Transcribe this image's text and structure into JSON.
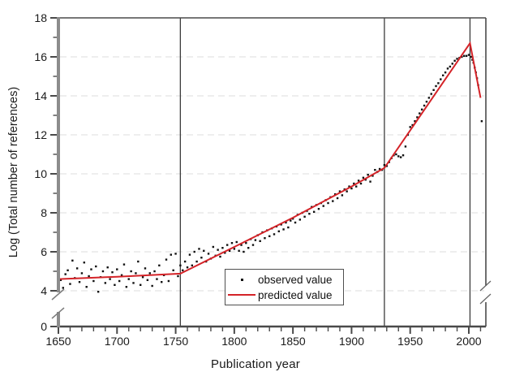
{
  "figure": {
    "xlabel": "Publication year",
    "ylabel": "Log (Total number of references)"
  },
  "chart_data": {
    "type": "scatter",
    "title": "",
    "xlabel": "Publication year",
    "ylabel": "Log (Total number of references)",
    "xlim": [
      1650,
      2014
    ],
    "ylim": [
      0,
      18
    ],
    "axis_break": {
      "axis": "y",
      "between": [
        0,
        4
      ]
    },
    "x_major_ticks": [
      1650,
      1700,
      1750,
      1800,
      1850,
      1900,
      1950,
      2000
    ],
    "x_minor_tick_step": 10,
    "y_major_ticks": [
      0,
      4,
      6,
      8,
      10,
      12,
      14,
      16,
      18
    ],
    "y_minor_ticks": [
      5,
      7,
      9,
      11,
      13,
      15,
      17
    ],
    "y_gridlines": [
      4,
      6,
      8,
      10,
      12,
      14,
      16
    ],
    "grid": "dashed-horizontal",
    "reference_lines_x": [
      1754,
      1928,
      2001
    ],
    "legend_position": "inside-bottom-center",
    "colors": {
      "observed": "#111111",
      "predicted": "#d42328",
      "frame": "#4a4a4a",
      "left_axis": "#8c8c8c",
      "grid": "#e8e8e8",
      "reference_line": "#3c3c3c"
    },
    "series": [
      {
        "name": "observed value",
        "type": "scatter",
        "marker": "square",
        "color": "#111111",
        "points": [
          [
            1650,
            5.35
          ],
          [
            1652,
            4.55
          ],
          [
            1654,
            4.15
          ],
          [
            1656,
            4.85
          ],
          [
            1658,
            5.05
          ],
          [
            1660,
            4.35
          ],
          [
            1662,
            5.55
          ],
          [
            1664,
            4.65
          ],
          [
            1666,
            5.15
          ],
          [
            1668,
            4.45
          ],
          [
            1670,
            4.9
          ],
          [
            1672,
            5.45
          ],
          [
            1674,
            4.2
          ],
          [
            1676,
            4.75
          ],
          [
            1678,
            5.1
          ],
          [
            1680,
            4.5
          ],
          [
            1682,
            5.25
          ],
          [
            1684,
            3.95
          ],
          [
            1686,
            4.7
          ],
          [
            1688,
            5.0
          ],
          [
            1690,
            4.4
          ],
          [
            1692,
            5.2
          ],
          [
            1694,
            4.6
          ],
          [
            1696,
            4.95
          ],
          [
            1698,
            4.3
          ],
          [
            1700,
            5.1
          ],
          [
            1702,
            4.5
          ],
          [
            1704,
            4.8
          ],
          [
            1706,
            5.35
          ],
          [
            1708,
            4.2
          ],
          [
            1710,
            4.6
          ],
          [
            1712,
            5.0
          ],
          [
            1714,
            4.4
          ],
          [
            1716,
            4.9
          ],
          [
            1718,
            5.5
          ],
          [
            1720,
            4.3
          ],
          [
            1722,
            4.7
          ],
          [
            1724,
            5.15
          ],
          [
            1726,
            4.55
          ],
          [
            1728,
            4.9
          ],
          [
            1730,
            4.25
          ],
          [
            1732,
            5.0
          ],
          [
            1734,
            4.6
          ],
          [
            1736,
            5.3
          ],
          [
            1738,
            4.45
          ],
          [
            1740,
            4.8
          ],
          [
            1742,
            5.6
          ],
          [
            1744,
            4.5
          ],
          [
            1746,
            5.85
          ],
          [
            1748,
            5.05
          ],
          [
            1750,
            5.9
          ],
          [
            1752,
            4.75
          ],
          [
            1754,
            5.3
          ],
          [
            1756,
            5.05
          ],
          [
            1758,
            5.5
          ],
          [
            1760,
            5.2
          ],
          [
            1762,
            5.85
          ],
          [
            1764,
            5.3
          ],
          [
            1766,
            6.0
          ],
          [
            1768,
            5.5
          ],
          [
            1770,
            6.15
          ],
          [
            1772,
            5.7
          ],
          [
            1774,
            6.05
          ],
          [
            1776,
            5.5
          ],
          [
            1778,
            5.9
          ],
          [
            1780,
            5.65
          ],
          [
            1782,
            6.25
          ],
          [
            1784,
            5.8
          ],
          [
            1786,
            6.1
          ],
          [
            1788,
            5.75
          ],
          [
            1790,
            6.2
          ],
          [
            1792,
            5.95
          ],
          [
            1794,
            6.35
          ],
          [
            1796,
            6.05
          ],
          [
            1798,
            6.45
          ],
          [
            1800,
            6.15
          ],
          [
            1802,
            6.5
          ],
          [
            1804,
            6.05
          ],
          [
            1806,
            6.35
          ],
          [
            1808,
            6.0
          ],
          [
            1810,
            6.45
          ],
          [
            1812,
            6.2
          ],
          [
            1814,
            6.65
          ],
          [
            1816,
            6.35
          ],
          [
            1818,
            6.6
          ],
          [
            1820,
            6.85
          ],
          [
            1822,
            6.55
          ],
          [
            1824,
            7.0
          ],
          [
            1826,
            6.7
          ],
          [
            1828,
            7.1
          ],
          [
            1830,
            6.8
          ],
          [
            1832,
            7.2
          ],
          [
            1834,
            6.9
          ],
          [
            1836,
            7.3
          ],
          [
            1838,
            7.05
          ],
          [
            1840,
            7.4
          ],
          [
            1842,
            7.15
          ],
          [
            1844,
            7.5
          ],
          [
            1846,
            7.25
          ],
          [
            1848,
            7.6
          ],
          [
            1850,
            7.7
          ],
          [
            1852,
            7.5
          ],
          [
            1854,
            7.9
          ],
          [
            1856,
            7.65
          ],
          [
            1858,
            8.0
          ],
          [
            1860,
            7.8
          ],
          [
            1862,
            8.1
          ],
          [
            1864,
            7.95
          ],
          [
            1866,
            8.3
          ],
          [
            1868,
            8.05
          ],
          [
            1870,
            8.4
          ],
          [
            1872,
            8.2
          ],
          [
            1874,
            8.5
          ],
          [
            1876,
            8.35
          ],
          [
            1878,
            8.65
          ],
          [
            1880,
            8.5
          ],
          [
            1882,
            8.8
          ],
          [
            1884,
            8.6
          ],
          [
            1886,
            8.95
          ],
          [
            1888,
            8.75
          ],
          [
            1890,
            9.1
          ],
          [
            1892,
            8.9
          ],
          [
            1894,
            9.2
          ],
          [
            1896,
            9.1
          ],
          [
            1898,
            9.35
          ],
          [
            1900,
            9.25
          ],
          [
            1902,
            9.5
          ],
          [
            1904,
            9.35
          ],
          [
            1906,
            9.65
          ],
          [
            1908,
            9.5
          ],
          [
            1910,
            9.8
          ],
          [
            1912,
            9.7
          ],
          [
            1914,
            9.95
          ],
          [
            1916,
            9.6
          ],
          [
            1918,
            9.9
          ],
          [
            1920,
            10.2
          ],
          [
            1922,
            10.1
          ],
          [
            1924,
            10.25
          ],
          [
            1926,
            10.2
          ],
          [
            1928,
            10.45
          ],
          [
            1930,
            10.4
          ],
          [
            1932,
            10.6
          ],
          [
            1934,
            10.8
          ],
          [
            1936,
            10.95
          ],
          [
            1938,
            11.0
          ],
          [
            1940,
            10.9
          ],
          [
            1942,
            10.85
          ],
          [
            1944,
            10.95
          ],
          [
            1946,
            11.4
          ],
          [
            1948,
            12.0
          ],
          [
            1950,
            12.4
          ],
          [
            1952,
            12.5
          ],
          [
            1954,
            12.7
          ],
          [
            1956,
            12.9
          ],
          [
            1958,
            13.1
          ],
          [
            1960,
            13.3
          ],
          [
            1962,
            13.5
          ],
          [
            1964,
            13.7
          ],
          [
            1966,
            13.9
          ],
          [
            1968,
            14.1
          ],
          [
            1970,
            14.3
          ],
          [
            1972,
            14.5
          ],
          [
            1974,
            14.65
          ],
          [
            1976,
            14.85
          ],
          [
            1978,
            15.05
          ],
          [
            1980,
            15.2
          ],
          [
            1982,
            15.4
          ],
          [
            1984,
            15.5
          ],
          [
            1986,
            15.65
          ],
          [
            1988,
            15.8
          ],
          [
            1990,
            15.9
          ],
          [
            1992,
            15.95
          ],
          [
            1994,
            16.0
          ],
          [
            1996,
            16.05
          ],
          [
            1998,
            16.05
          ],
          [
            2000,
            16.1
          ],
          [
            2002,
            16.0
          ],
          [
            2003,
            15.85
          ],
          [
            2004,
            15.7
          ],
          [
            2005,
            15.45
          ],
          [
            2006,
            15.2
          ],
          [
            2007,
            14.9
          ],
          [
            2008,
            14.55
          ],
          [
            2011,
            12.7
          ]
        ]
      },
      {
        "name": "predicted value",
        "type": "line",
        "color": "#d42328",
        "points": [
          [
            1650,
            4.6
          ],
          [
            1700,
            4.72
          ],
          [
            1754,
            4.88
          ],
          [
            1800,
            6.25
          ],
          [
            1850,
            7.75
          ],
          [
            1900,
            9.35
          ],
          [
            1928,
            10.3
          ],
          [
            2001,
            16.7
          ],
          [
            2010,
            13.9
          ]
        ]
      }
    ]
  }
}
